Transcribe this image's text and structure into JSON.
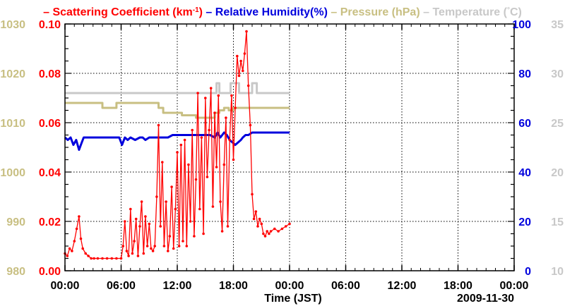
{
  "chart_data": {
    "type": "line",
    "legend": [
      {
        "dash": "–",
        "label": "Scattering Coefficient (km",
        "sup": "-1",
        "close": ")",
        "color": "#ff0000"
      },
      {
        "dash": "–",
        "label": "Relative Humidity(%)",
        "color": "#0000dd"
      },
      {
        "dash": "–",
        "label": "Pressure (hPa)",
        "color": "#c8bf82"
      },
      {
        "dash": "–",
        "label": "Temperature (",
        "ring": "°",
        "close": "C)",
        "color": "#c8c8c8"
      }
    ],
    "xlabel": "Time (JST)",
    "date_label": "2009-11-30",
    "x_range_hours": [
      0,
      48
    ],
    "x_ticks": [
      {
        "h": 0,
        "label": "00:00"
      },
      {
        "h": 6,
        "label": "06:00"
      },
      {
        "h": 12,
        "label": "12:00"
      },
      {
        "h": 18,
        "label": "18:00"
      },
      {
        "h": 24,
        "label": "00:00"
      },
      {
        "h": 30,
        "label": "06:00"
      },
      {
        "h": 36,
        "label": "12:00"
      },
      {
        "h": 42,
        "label": "18:00"
      },
      {
        "h": 48,
        "label": "00:00"
      }
    ],
    "axes": {
      "pressure": {
        "range": [
          980,
          1030
        ],
        "ticks": [
          980,
          990,
          1000,
          1010,
          1020,
          1030
        ],
        "labels": [
          "980",
          "990",
          "1000",
          "1010",
          "1020",
          "1030"
        ],
        "color": "#c8bf82"
      },
      "scattering": {
        "range": [
          0,
          0.1
        ],
        "ticks": [
          0,
          0.02,
          0.04,
          0.06,
          0.08,
          0.1
        ],
        "labels": [
          "0.00",
          "0.02",
          "0.04",
          "0.06",
          "0.08",
          "0.10"
        ],
        "color": "#ff0000"
      },
      "humidity": {
        "range": [
          0,
          100
        ],
        "ticks": [
          0,
          20,
          40,
          60,
          80,
          100
        ],
        "labels": [
          "0",
          "20",
          "40",
          "60",
          "80",
          "100"
        ],
        "color": "#0000dd"
      },
      "temperature": {
        "range": [
          10,
          35
        ],
        "ticks": [
          10,
          15,
          20,
          25,
          30,
          35
        ],
        "labels": [
          "10",
          "15",
          "20",
          "25",
          "30",
          "35"
        ],
        "color": "#c8c8c8"
      }
    },
    "grid": true,
    "series": [
      {
        "name": "Pressure (hPa)",
        "axis": "pressure",
        "step": true,
        "color": "#c8bf82",
        "x": [
          0,
          4,
          4,
          5.5,
          5.5,
          10,
          10,
          10.5,
          10.5,
          12,
          12,
          12.5,
          12.5,
          14,
          14,
          16,
          16,
          16.5,
          16.5,
          17,
          17,
          17.5,
          17.5,
          18,
          18,
          24
        ],
        "y": [
          1014,
          1014,
          1013,
          1013,
          1014,
          1014,
          1013,
          1013,
          1012,
          1012,
          1012,
          1012,
          1011.5,
          1011.5,
          1011,
          1011,
          1012,
          1012,
          1012.5,
          1012.5,
          1013,
          1013,
          1012.5,
          1012.5,
          1013,
          1013
        ]
      },
      {
        "name": "Temperature (C)",
        "axis": "temperature",
        "step": true,
        "color": "#c8c8c8",
        "x": [
          0,
          16.2,
          16.2,
          16.5,
          16.5,
          17.7,
          17.7,
          18.6,
          18.6,
          20,
          20,
          20.5,
          20.5,
          24
        ],
        "y": [
          28,
          28,
          29,
          29,
          28,
          28,
          29,
          29,
          28,
          28,
          29,
          29,
          28,
          28
        ]
      },
      {
        "name": "Relative Humidity(%)",
        "axis": "humidity",
        "step": false,
        "color": "#0000dd",
        "x": [
          0,
          0.3,
          0.6,
          0.9,
          1.2,
          1.5,
          1.8,
          2.0,
          2.3,
          2.6,
          3,
          4,
          5,
          5.5,
          5.8,
          6.1,
          6.4,
          6.7,
          7,
          7.5,
          8,
          8.3,
          8.6,
          9,
          9.5,
          10,
          10.5,
          11,
          11.5,
          12,
          12.5,
          13,
          13.5,
          14,
          14.5,
          15,
          15.5,
          16,
          16.3,
          16.6,
          17,
          17.3,
          17.6,
          17.9,
          18.2,
          18.5,
          18.8,
          19,
          19.3,
          19.6,
          20,
          20.5,
          21,
          21.5,
          22,
          22.5,
          23,
          23.5,
          24
        ],
        "y": [
          54,
          53,
          54,
          51,
          53,
          49,
          52,
          54,
          54,
          54,
          54,
          54,
          54,
          54,
          54,
          51,
          54,
          53,
          54,
          53,
          54,
          54,
          53,
          54,
          54,
          54,
          54,
          54,
          55,
          55,
          55,
          55,
          55,
          55,
          55,
          55,
          55,
          54,
          56,
          54,
          56,
          55,
          53,
          52,
          51,
          52,
          53,
          54,
          55,
          55,
          56,
          56,
          56,
          56,
          56,
          56,
          56,
          56,
          56
        ]
      },
      {
        "name": "Scattering Coefficient (km-1)",
        "axis": "scattering",
        "step": false,
        "markers": true,
        "color": "#ff0000",
        "x": [
          0,
          0.25,
          0.5,
          0.75,
          1.0,
          1.25,
          1.5,
          1.7,
          1.9,
          2.2,
          2.5,
          2.8,
          3.1,
          3.5,
          4,
          4.5,
          5,
          5.5,
          6.0,
          6.2,
          6.4,
          6.6,
          6.8,
          7.0,
          7.2,
          7.4,
          7.6,
          7.8,
          8.0,
          8.2,
          8.4,
          8.6,
          8.8,
          9.0,
          9.2,
          9.4,
          9.6,
          9.8,
          10.0,
          10.2,
          10.4,
          10.6,
          10.8,
          11.0,
          11.2,
          11.4,
          11.6,
          11.8,
          12.0,
          12.2,
          12.4,
          12.6,
          12.8,
          13.0,
          13.2,
          13.4,
          13.6,
          13.8,
          14.0,
          14.2,
          14.4,
          14.6,
          14.8,
          15.0,
          15.2,
          15.4,
          15.6,
          15.8,
          16.0,
          16.2,
          16.4,
          16.6,
          16.8,
          17.0,
          17.2,
          17.4,
          17.6,
          17.8,
          18.0,
          18.2,
          18.4,
          18.6,
          18.8,
          19.0,
          19.2,
          19.4,
          19.6,
          19.8,
          20.0,
          20.2,
          20.4,
          20.6,
          20.8,
          21.0,
          21.2,
          21.4,
          21.6,
          21.8,
          22.0,
          22.4,
          22.8,
          23.2,
          23.6,
          24.0
        ],
        "y": [
          0.007,
          0.006,
          0.009,
          0.008,
          0.012,
          0.017,
          0.022,
          0.013,
          0.009,
          0.007,
          0.006,
          0.005,
          0.005,
          0.005,
          0.005,
          0.005,
          0.005,
          0.005,
          0.005,
          0.01,
          0.02,
          0.008,
          0.006,
          0.025,
          0.007,
          0.012,
          0.021,
          0.006,
          0.018,
          0.028,
          0.007,
          0.022,
          0.01,
          0.019,
          0.009,
          0.008,
          0.01,
          0.03,
          0.059,
          0.018,
          0.044,
          0.01,
          0.028,
          0.008,
          0.014,
          0.034,
          0.009,
          0.025,
          0.048,
          0.01,
          0.051,
          0.012,
          0.053,
          0.01,
          0.043,
          0.02,
          0.057,
          0.014,
          0.037,
          0.072,
          0.025,
          0.054,
          0.015,
          0.07,
          0.038,
          0.057,
          0.074,
          0.026,
          0.064,
          0.042,
          0.071,
          0.028,
          0.016,
          0.043,
          0.062,
          0.018,
          0.053,
          0.071,
          0.045,
          0.066,
          0.087,
          0.079,
          0.085,
          0.081,
          0.088,
          0.097,
          0.075,
          0.059,
          0.031,
          0.021,
          0.024,
          0.018,
          0.021,
          0.019,
          0.015,
          0.014,
          0.016,
          0.015,
          0.016,
          0.017,
          0.016,
          0.017,
          0.018,
          0.019
        ]
      }
    ]
  }
}
